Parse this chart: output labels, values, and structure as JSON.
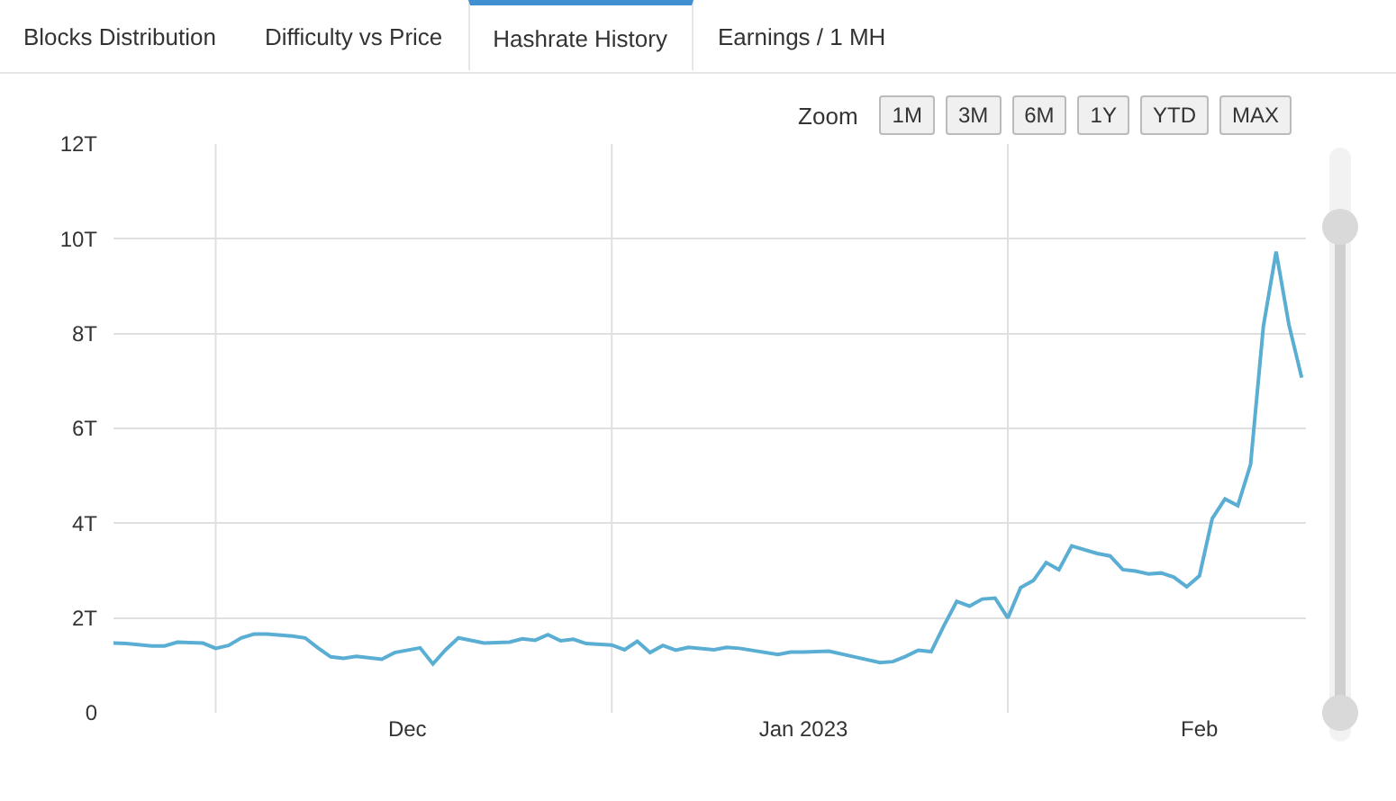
{
  "chart_data": {
    "type": "line",
    "annotations": [
      "Blocks Distribution",
      "Difficulty vs Price",
      "Hashrate History",
      "Earnings / 1 MH",
      "Zoom",
      "1M",
      "3M",
      "6M",
      "1Y",
      "YTD",
      "MAX"
    ],
    "x": [
      "2022-11-08",
      "2022-11-09",
      "2022-11-11",
      "2022-11-12",
      "2022-11-13",
      "2022-11-15",
      "2022-11-16",
      "2022-11-17",
      "2022-11-18",
      "2022-11-19",
      "2022-11-20",
      "2022-11-22",
      "2022-11-23",
      "2022-11-24",
      "2022-11-25",
      "2022-11-26",
      "2022-11-27",
      "2022-11-29",
      "2022-11-30",
      "2022-12-02",
      "2022-12-03",
      "2022-12-04",
      "2022-12-05",
      "2022-12-07",
      "2022-12-09",
      "2022-12-10",
      "2022-12-11",
      "2022-12-12",
      "2022-12-13",
      "2022-12-14",
      "2022-12-15",
      "2022-12-17",
      "2022-12-18",
      "2022-12-19",
      "2022-12-20",
      "2022-12-21",
      "2022-12-22",
      "2022-12-23",
      "2022-12-25",
      "2022-12-26",
      "2022-12-27",
      "2022-12-30",
      "2022-12-31",
      "2023-01-01",
      "2023-01-03",
      "2023-01-05",
      "2023-01-07",
      "2023-01-08",
      "2023-01-09",
      "2023-01-10",
      "2023-01-11",
      "2023-01-12",
      "2023-01-13",
      "2023-01-14",
      "2023-01-15",
      "2023-01-16",
      "2023-01-17",
      "2023-01-18",
      "2023-01-19",
      "2023-01-20",
      "2023-01-21",
      "2023-01-22",
      "2023-01-24",
      "2023-01-25",
      "2023-01-26",
      "2023-01-27",
      "2023-01-28",
      "2023-01-29",
      "2023-01-30",
      "2023-01-31",
      "2023-02-01",
      "2023-02-02",
      "2023-02-03",
      "2023-02-04",
      "2023-02-05",
      "2023-02-06",
      "2023-02-07",
      "2023-02-08",
      "2023-02-09"
    ],
    "series": [
      {
        "color": "#5aaed3",
        "values": [
          1.47,
          1.46,
          1.41,
          1.41,
          1.49,
          1.47,
          1.36,
          1.42,
          1.58,
          1.66,
          1.66,
          1.62,
          1.58,
          1.37,
          1.18,
          1.15,
          1.19,
          1.13,
          1.27,
          1.37,
          1.03,
          1.33,
          1.58,
          1.47,
          1.49,
          1.56,
          1.53,
          1.65,
          1.52,
          1.55,
          1.46,
          1.43,
          1.33,
          1.51,
          1.27,
          1.42,
          1.32,
          1.38,
          1.33,
          1.38,
          1.36,
          1.23,
          1.28,
          1.28,
          1.3,
          1.18,
          1.06,
          1.08,
          1.19,
          1.32,
          1.29,
          1.84,
          2.35,
          2.25,
          2.4,
          2.42,
          2.0,
          2.64,
          2.79,
          3.17,
          3.02,
          3.52,
          3.36,
          3.31,
          3.02,
          2.99,
          2.93,
          2.95,
          2.86,
          2.66,
          2.89,
          4.1,
          4.51,
          4.37,
          5.24,
          8.15,
          9.73,
          8.19,
          7.07
        ]
      }
    ],
    "xlim": [
      "2022-11-08",
      "2023-02-09T08:00"
    ],
    "xticks": [
      {
        "value": "2022-11-16",
        "label": null
      },
      {
        "value": "2022-12-01",
        "label": "Dec"
      },
      {
        "value": "2022-12-17",
        "label": null
      },
      {
        "value": "2023-01-01",
        "label": "Jan 2023"
      },
      {
        "value": "2023-01-17",
        "label": null
      },
      {
        "value": "2023-02-01",
        "label": "Feb"
      }
    ],
    "ylim": [
      0,
      12
    ],
    "yticks": [
      0,
      {
        "value": 2,
        "label": "2T"
      },
      {
        "value": 4,
        "label": "4T"
      },
      {
        "value": 6,
        "label": "6T"
      },
      {
        "value": 8,
        "label": "8T"
      },
      {
        "value": 10,
        "label": "10T"
      },
      {
        "value": 12,
        "label": "12T"
      }
    ],
    "grid": true,
    "marker": "none",
    "line_style": "solid"
  }
}
